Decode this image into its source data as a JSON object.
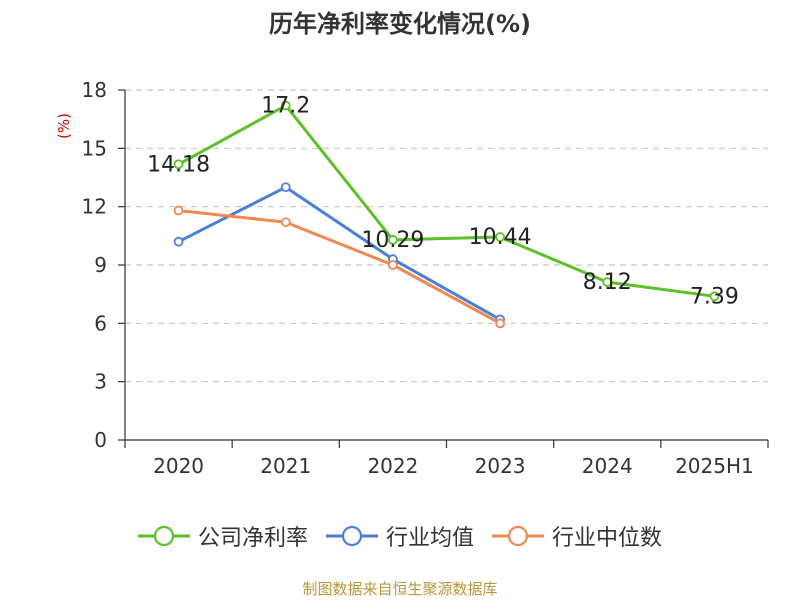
{
  "chart_data": {
    "type": "line",
    "title": "历年净利率变化情况(%)",
    "ylabel": "(%)",
    "categories": [
      "2020",
      "2021",
      "2022",
      "2023",
      "2024",
      "2025H1"
    ],
    "yticks": [
      0,
      3,
      6,
      9,
      12,
      15,
      18
    ],
    "ylim": [
      0,
      18
    ],
    "grid": "horizontal dashed",
    "legend_position": "bottom",
    "series": [
      {
        "name": "公司净利率",
        "color": "#5bc226",
        "values": [
          14.18,
          17.2,
          10.29,
          10.44,
          8.12,
          7.39
        ],
        "labels": [
          "14.18",
          "17.2",
          "10.29",
          "10.44",
          "8.12",
          "7.39"
        ]
      },
      {
        "name": "行业均值",
        "color": "#4a7fdc",
        "values": [
          10.2,
          13.0,
          9.3,
          6.2,
          null,
          null
        ]
      },
      {
        "name": "行业中位数",
        "color": "#f0884f",
        "values": [
          11.8,
          11.2,
          9.0,
          6.0,
          null,
          null
        ]
      }
    ]
  },
  "source_text": "制图数据来自恒生聚源数据库"
}
